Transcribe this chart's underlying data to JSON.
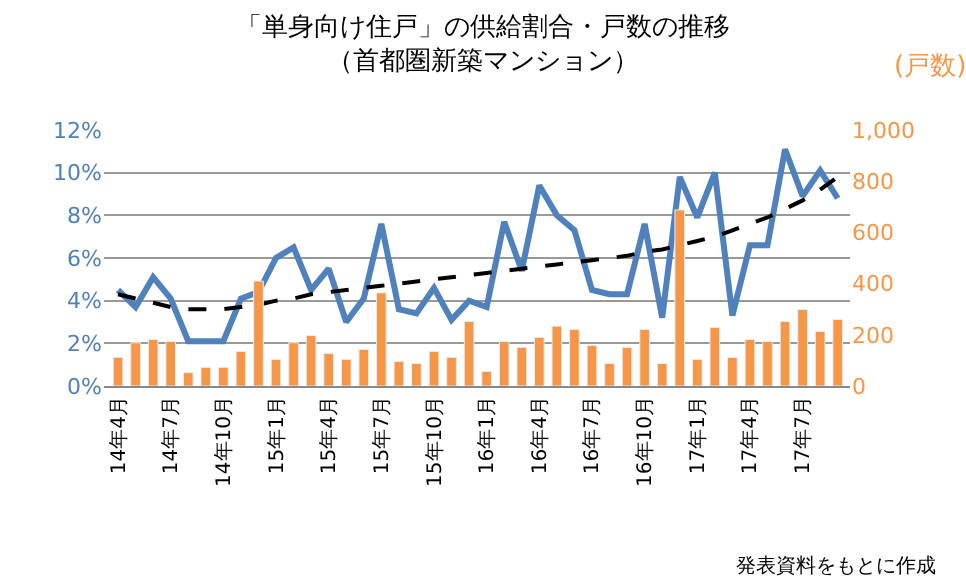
{
  "chart_data": {
    "type": "bar",
    "title": "「単身向け住戸」の供給割合・戸数の推移",
    "subtitle": "（首都圏新築マンション）",
    "y2label": "(戸数)",
    "categories": [
      "14年4月",
      null,
      null,
      "14年7月",
      null,
      null,
      "14年10月",
      null,
      null,
      "15年1月",
      null,
      null,
      "15年4月",
      null,
      null,
      "15年7月",
      null,
      null,
      "15年10月",
      null,
      null,
      "16年1月",
      null,
      null,
      "16年4月",
      null,
      null,
      "16年7月",
      null,
      null,
      "16年10月",
      null,
      null,
      "17年1月",
      null,
      null,
      "17年4月",
      null,
      null,
      "17年7月",
      null,
      null
    ],
    "series": [
      {
        "axis": "y2",
        "color": "#f79646",
        "values": [
          112,
          169,
          182,
          174,
          52,
          73,
          73,
          135,
          410,
          104,
          169,
          197,
          127,
          104,
          143,
          364,
          96,
          88,
          135,
          112,
          252,
          57,
          174,
          151,
          190,
          234,
          221,
          158,
          88,
          151,
          221,
          88,
          688,
          104,
          229,
          112,
          182,
          174,
          252,
          299,
          213,
          260
        ]
      },
      {
        "type": "line",
        "axis": "y",
        "color": "#4f81bd",
        "values": [
          4.5,
          3.7,
          5.1,
          4.1,
          2.1,
          2.1,
          2.1,
          4.1,
          4.4,
          6.0,
          6.5,
          4.5,
          5.5,
          3.0,
          4.1,
          7.6,
          3.6,
          3.4,
          4.6,
          3.1,
          4.0,
          3.7,
          7.7,
          5.4,
          9.4,
          8.0,
          7.3,
          4.5,
          4.3,
          4.3,
          7.6,
          3.2,
          9.8,
          7.9,
          10.0,
          3.3,
          6.6,
          6.6,
          11.1,
          8.9,
          10.1,
          8.8
        ]
      },
      {
        "type": "line",
        "axis": "y",
        "color": "#000000",
        "line_style": "dashed",
        "values": [
          4.3,
          4.1,
          3.9,
          3.7,
          3.6,
          3.6,
          3.6,
          3.7,
          3.8,
          4.0,
          4.1,
          4.3,
          4.4,
          4.5,
          4.6,
          4.7,
          4.8,
          4.9,
          5.0,
          5.1,
          5.2,
          5.3,
          5.4,
          5.5,
          5.6,
          5.7,
          5.8,
          5.9,
          6.0,
          6.1,
          6.3,
          6.4,
          6.6,
          6.8,
          7.0,
          7.3,
          7.6,
          7.9,
          8.3,
          8.7,
          9.2,
          9.8
        ]
      }
    ],
    "ylim": [
      0,
      12
    ],
    "yticks": [
      {
        "value": 0,
        "label": "0%"
      },
      {
        "value": 2,
        "label": "2%"
      },
      {
        "value": 4,
        "label": "4%"
      },
      {
        "value": 6,
        "label": "6%"
      },
      {
        "value": 8,
        "label": "8%"
      },
      {
        "value": 10,
        "label": "10%"
      },
      {
        "value": 12,
        "label": "12%"
      }
    ],
    "y2lim": [
      0,
      1000
    ],
    "y2ticks": [
      0,
      200,
      400,
      600,
      800,
      {
        "value": 1000,
        "label": "1,000"
      }
    ],
    "grid": "y",
    "annotations": [
      "発表資料をもとに作成"
    ]
  }
}
